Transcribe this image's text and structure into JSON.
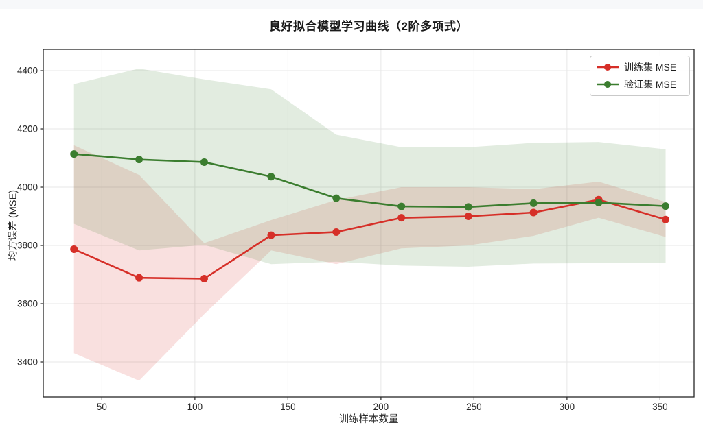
{
  "page": {
    "top_strip_color": "#f7f8fa",
    "background": "#ffffff"
  },
  "chart_data": {
    "type": "line",
    "title": "良好拟合模型学习曲线（2阶多项式）",
    "xlabel": "训练样本数量",
    "ylabel": "均方误差 (MSE)",
    "x": [
      35,
      70,
      105,
      141,
      176,
      211,
      247,
      282,
      317,
      353
    ],
    "series": [
      {
        "name": "训练集 MSE",
        "color": "#d62f28",
        "values": [
          3787,
          3689,
          3686,
          3835,
          3846,
          3895,
          3900,
          3913,
          3957,
          3889
        ],
        "band_upper": [
          4144,
          4042,
          3808,
          3887,
          3956,
          4000,
          4000,
          3993,
          4019,
          3949
        ],
        "band_lower": [
          3430,
          3336,
          3564,
          3783,
          3736,
          3790,
          3800,
          3833,
          3895,
          3829
        ]
      },
      {
        "name": "验证集 MSE",
        "color": "#3b7d2f",
        "values": [
          4114,
          4095,
          4086,
          4036,
          3962,
          3934,
          3932,
          3945,
          3947,
          3935
        ],
        "band_upper": [
          4354,
          4407,
          4370,
          4336,
          4180,
          4137,
          4137,
          4152,
          4155,
          4130
        ],
        "band_lower": [
          3874,
          3783,
          3802,
          3736,
          3744,
          3731,
          3727,
          3738,
          3739,
          3740
        ]
      }
    ],
    "xticks": [
      50,
      100,
      150,
      200,
      250,
      300,
      350
    ],
    "yticks": [
      3400,
      3600,
      3800,
      4000,
      4200,
      4400
    ],
    "xlim": [
      18.5,
      368.3
    ],
    "ylim": [
      3280,
      4473
    ],
    "grid": true,
    "legend_position": "upper right",
    "band_alpha": 0.15,
    "grid_color": "#e7e7e7",
    "spine_color": "#262626",
    "tick_label_color": "#262626"
  }
}
